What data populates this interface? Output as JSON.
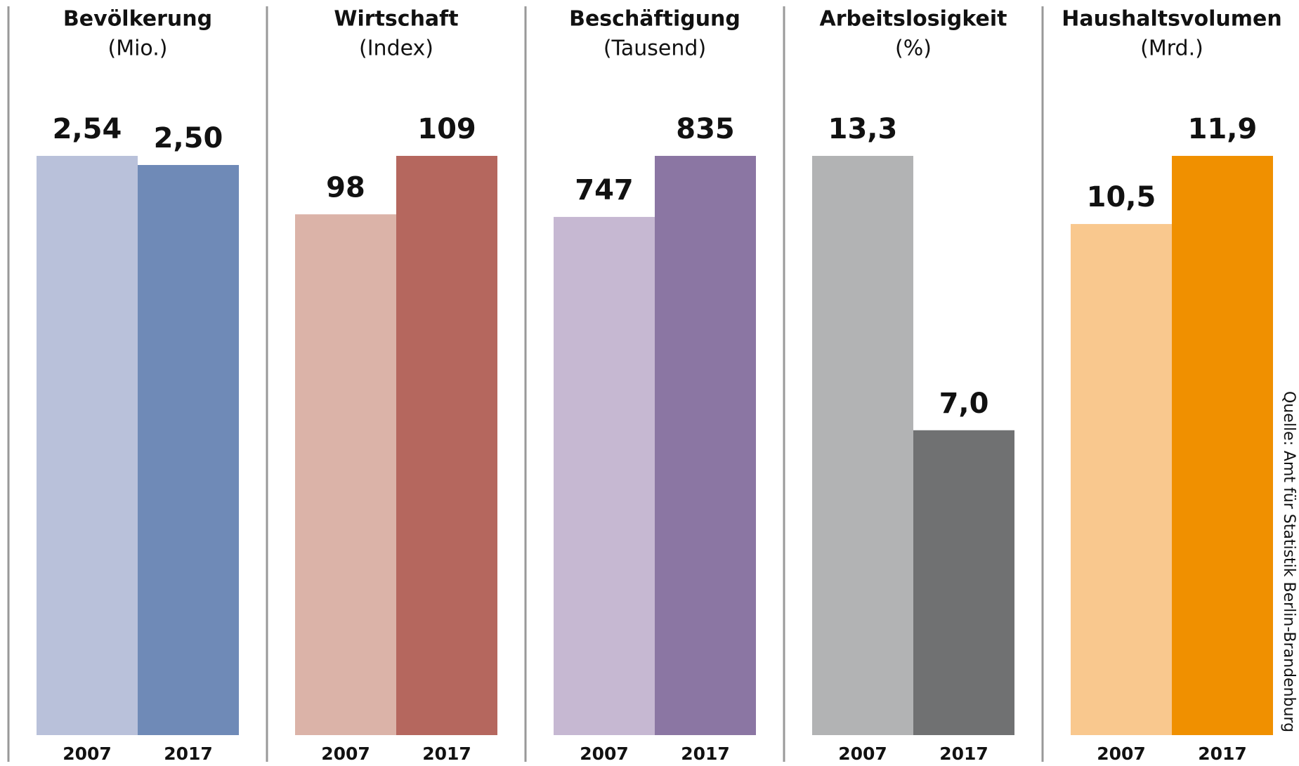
{
  "chart_data": [
    {
      "type": "bar",
      "title": "Bevölkerung",
      "subtitle": "(Mio.)",
      "categories": [
        "2007",
        "2017"
      ],
      "values": [
        2.54,
        2.5
      ],
      "value_labels": [
        "2,54",
        "2,50"
      ],
      "colors": [
        "#b9c1da",
        "#6f8ab7"
      ],
      "ylim": [
        0,
        2.54
      ]
    },
    {
      "type": "bar",
      "title": "Wirtschaft",
      "subtitle": "(Index)",
      "categories": [
        "2007",
        "2017"
      ],
      "values": [
        98,
        109
      ],
      "colors": [
        "#dbb3a8",
        "#b5675e"
      ],
      "ylim": [
        0,
        109
      ]
    },
    {
      "type": "bar",
      "title": "Beschäftigung",
      "subtitle": "(Tausend)",
      "categories": [
        "2007",
        "2017"
      ],
      "values": [
        747,
        835
      ],
      "colors": [
        "#c6b8d2",
        "#8b76a3"
      ],
      "ylim": [
        0,
        835
      ]
    },
    {
      "type": "bar",
      "title": "Arbeitslosigkeit",
      "subtitle": "(%)",
      "categories": [
        "2007",
        "2017"
      ],
      "values": [
        13.3,
        7.0
      ],
      "value_labels": [
        "13,3",
        "7,0"
      ],
      "colors": [
        "#b2b3b4",
        "#707172"
      ],
      "ylim": [
        0,
        13.3
      ]
    },
    {
      "type": "bar",
      "title": "Haushaltsvolumen",
      "subtitle": "(Mrd.)",
      "categories": [
        "2007",
        "2017"
      ],
      "values": [
        10.5,
        11.9
      ],
      "value_labels": [
        "10,5",
        "11,9"
      ],
      "colors": [
        "#f9c88e",
        "#f09000"
      ],
      "ylim": [
        0,
        11.9
      ]
    }
  ],
  "source": "Quelle: Amt für Statistik Berlin-Brandenburg"
}
